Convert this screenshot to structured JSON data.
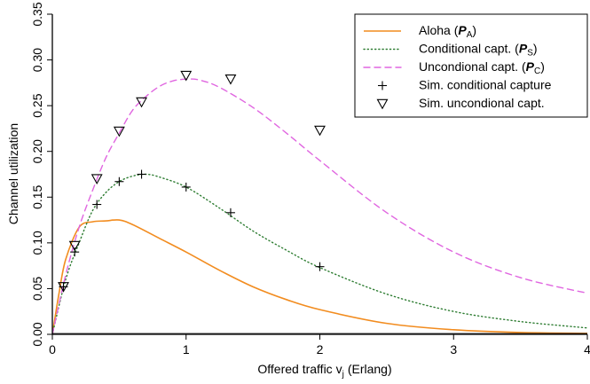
{
  "chart_data": {
    "type": "line",
    "xlabel": "Offered traffic  v",
    "xlabel_sub": "j",
    "xlabel_unit": "(Erlang)",
    "ylabel": "Channel utilization",
    "xlim": [
      0,
      4
    ],
    "ylim": [
      0,
      0.35
    ],
    "x_ticks": [
      "0",
      "1",
      "2",
      "3",
      "4"
    ],
    "y_ticks": [
      "0.00",
      "0.05",
      "0.10",
      "0.15",
      "0.20",
      "0.25",
      "0.30",
      "0.35"
    ],
    "grid": false,
    "legend_position": "top-right",
    "colors": {
      "aloha": "#f28c1f",
      "conditional": "#2e7d32",
      "unconditional": "#e066e0",
      "markers": "#000000"
    },
    "series": [
      {
        "name": "Aloha (",
        "name_symbol": "P",
        "name_sub": "A",
        "name_close": ")",
        "style": "solid",
        "x": [
          0,
          0.05,
          0.1,
          0.2,
          0.3,
          0.4,
          0.5,
          0.6,
          0.8,
          1.0,
          1.25,
          1.5,
          1.75,
          2.0,
          2.5,
          3.0,
          3.5,
          4.0
        ],
        "values": [
          0,
          0.045,
          0.082,
          0.117,
          0.123,
          0.124,
          0.125,
          0.12,
          0.105,
          0.09,
          0.07,
          0.052,
          0.038,
          0.027,
          0.012,
          0.005,
          0.002,
          0.001
        ]
      },
      {
        "name": "Conditional capt. (",
        "name_symbol": "P",
        "name_sub": "S",
        "name_close": ")",
        "style": "dotted",
        "x": [
          0,
          0.1,
          0.2,
          0.3,
          0.4,
          0.5,
          0.6,
          0.7,
          0.8,
          1.0,
          1.25,
          1.5,
          1.75,
          2.0,
          2.5,
          3.0,
          3.5,
          4.0
        ],
        "values": [
          0,
          0.06,
          0.1,
          0.135,
          0.155,
          0.167,
          0.173,
          0.175,
          0.172,
          0.161,
          0.138,
          0.113,
          0.092,
          0.073,
          0.044,
          0.025,
          0.014,
          0.007
        ]
      },
      {
        "name": "Uncondional capt. (",
        "name_symbol": "P",
        "name_sub": "C",
        "name_close": ")",
        "style": "dashed",
        "x": [
          0,
          0.1,
          0.2,
          0.3,
          0.4,
          0.5,
          0.6,
          0.7,
          0.8,
          0.9,
          1.0,
          1.1,
          1.25,
          1.5,
          1.75,
          2.0,
          2.5,
          3.0,
          3.5,
          4.0
        ],
        "values": [
          0,
          0.065,
          0.117,
          0.157,
          0.193,
          0.22,
          0.245,
          0.26,
          0.271,
          0.277,
          0.279,
          0.278,
          0.27,
          0.248,
          0.22,
          0.19,
          0.133,
          0.09,
          0.062,
          0.045
        ]
      },
      {
        "name": "Sim. conditional capture",
        "style": "marker-plus",
        "x": [
          0.083,
          0.167,
          0.333,
          0.5,
          0.667,
          1.0,
          1.333,
          2.0
        ],
        "values": [
          0.052,
          0.09,
          0.142,
          0.167,
          0.175,
          0.161,
          0.133,
          0.074
        ]
      },
      {
        "name": "Sim. uncondional capt.",
        "style": "marker-triangle",
        "x": [
          0.083,
          0.167,
          0.333,
          0.5,
          0.667,
          1.0,
          1.333,
          2.0
        ],
        "values": [
          0.052,
          0.097,
          0.17,
          0.222,
          0.254,
          0.283,
          0.279,
          0.223
        ]
      }
    ]
  }
}
